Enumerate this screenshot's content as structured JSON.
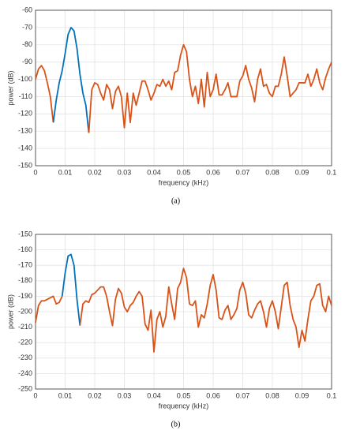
{
  "chart_data": [
    {
      "type": "line",
      "caption": "(a)",
      "xlabel": "frequency (kHz)",
      "ylabel": "power (dB)",
      "xlim": [
        0,
        0.1
      ],
      "xticks": [
        0,
        0.01,
        0.02,
        0.03,
        0.04,
        0.05,
        0.06,
        0.07,
        0.08,
        0.09,
        0.1
      ],
      "ylim": [
        -150,
        -60
      ],
      "yticks": [
        -60,
        -70,
        -80,
        -90,
        -100,
        -110,
        -120,
        -130,
        -140,
        -150
      ],
      "grid": true,
      "series": [
        {
          "color": "#d95319",
          "x": [
            0,
            0.001,
            0.002,
            0.003,
            0.004,
            0.005,
            0.006
          ],
          "values": [
            -100,
            -94,
            -92,
            -95,
            -102,
            -110,
            -125
          ]
        },
        {
          "color": "#0072bd",
          "x": [
            0.006,
            0.007,
            0.008,
            0.009,
            0.01,
            0.011,
            0.012,
            0.013,
            0.014,
            0.015,
            0.016,
            0.017,
            0.018
          ],
          "values": [
            -125,
            -112,
            -102,
            -95,
            -85,
            -74,
            -70,
            -72,
            -82,
            -97,
            -108,
            -115,
            -131
          ]
        },
        {
          "color": "#d95319",
          "x": [
            0.018,
            0.019,
            0.02,
            0.021,
            0.022,
            0.023,
            0.024,
            0.025,
            0.026,
            0.027,
            0.028,
            0.029,
            0.03,
            0.031,
            0.032,
            0.033,
            0.034,
            0.035,
            0.036,
            0.037,
            0.038,
            0.039,
            0.04,
            0.041,
            0.042,
            0.043,
            0.044,
            0.045,
            0.046,
            0.047,
            0.048,
            0.049,
            0.05,
            0.051,
            0.052,
            0.053,
            0.054,
            0.055,
            0.056,
            0.057,
            0.058,
            0.059,
            0.06,
            0.061,
            0.062,
            0.063,
            0.064,
            0.065,
            0.066,
            0.067,
            0.068,
            0.069,
            0.07,
            0.071,
            0.072,
            0.073,
            0.074,
            0.075,
            0.076,
            0.077,
            0.078,
            0.079,
            0.08,
            0.081,
            0.082,
            0.083,
            0.084,
            0.085,
            0.086,
            0.087,
            0.088,
            0.089,
            0.09,
            0.091,
            0.092,
            0.093,
            0.094,
            0.095,
            0.096,
            0.097,
            0.098,
            0.099,
            0.1
          ],
          "values": [
            -131,
            -106,
            -102,
            -103,
            -108,
            -112,
            -103,
            -106,
            -117,
            -107,
            -104,
            -110,
            -128,
            -108,
            -125,
            -108,
            -115,
            -108,
            -101,
            -101,
            -106,
            -112,
            -108,
            -103,
            -104,
            -100,
            -104,
            -101,
            -106,
            -96,
            -95,
            -86,
            -80,
            -84,
            -100,
            -110,
            -104,
            -114,
            -100,
            -116,
            -96,
            -110,
            -106,
            -97,
            -109,
            -109,
            -106,
            -102,
            -110,
            -110,
            -110,
            -101,
            -98,
            -92,
            -100,
            -105,
            -113,
            -100,
            -94,
            -104,
            -103,
            -108,
            -110,
            -104,
            -104,
            -97,
            -87,
            -98,
            -110,
            -108,
            -106,
            -102,
            -102,
            -102,
            -97,
            -104,
            -100,
            -94,
            -102,
            -106,
            -99,
            -94,
            -90
          ]
        }
      ]
    },
    {
      "type": "line",
      "caption": "(b)",
      "xlabel": "frequency (kHz)",
      "ylabel": "power (dB)",
      "xlim": [
        0,
        0.1
      ],
      "xticks": [
        0,
        0.01,
        0.02,
        0.03,
        0.04,
        0.05,
        0.06,
        0.07,
        0.08,
        0.09,
        0.1
      ],
      "ylim": [
        -250,
        -150
      ],
      "yticks": [
        -150,
        -160,
        -170,
        -180,
        -190,
        -200,
        -210,
        -220,
        -230,
        -240,
        -250
      ],
      "grid": true,
      "series": [
        {
          "color": "#d95319",
          "x": [
            0,
            0.001,
            0.002,
            0.003,
            0.004,
            0.005,
            0.006,
            0.007,
            0.008,
            0.009
          ],
          "values": [
            -207,
            -196,
            -193,
            -193,
            -192,
            -191,
            -190,
            -195,
            -194,
            -190
          ]
        },
        {
          "color": "#0072bd",
          "x": [
            0.009,
            0.01,
            0.011,
            0.012,
            0.013,
            0.014,
            0.015
          ],
          "values": [
            -190,
            -175,
            -164,
            -163,
            -170,
            -192,
            -209
          ]
        },
        {
          "color": "#d95319",
          "x": [
            0.015,
            0.016,
            0.017,
            0.018,
            0.019,
            0.02,
            0.021,
            0.022,
            0.023,
            0.024,
            0.025,
            0.026,
            0.027,
            0.028,
            0.029,
            0.03,
            0.031,
            0.032,
            0.033,
            0.034,
            0.035,
            0.036,
            0.037,
            0.038,
            0.039,
            0.04,
            0.041,
            0.042,
            0.043,
            0.044,
            0.045,
            0.046,
            0.047,
            0.048,
            0.049,
            0.05,
            0.051,
            0.052,
            0.053,
            0.054,
            0.055,
            0.056,
            0.057,
            0.058,
            0.059,
            0.06,
            0.061,
            0.062,
            0.063,
            0.064,
            0.065,
            0.066,
            0.067,
            0.068,
            0.069,
            0.07,
            0.071,
            0.072,
            0.073,
            0.074,
            0.075,
            0.076,
            0.077,
            0.078,
            0.079,
            0.08,
            0.081,
            0.082,
            0.083,
            0.084,
            0.085,
            0.086,
            0.087,
            0.088,
            0.089,
            0.09,
            0.091,
            0.092,
            0.093,
            0.094,
            0.095,
            0.096,
            0.097,
            0.098,
            0.099,
            0.1
          ],
          "values": [
            -209,
            -195,
            -193,
            -194,
            -189,
            -188,
            -186,
            -184,
            -184,
            -190,
            -200,
            -209,
            -192,
            -185,
            -188,
            -197,
            -200,
            -196,
            -194,
            -190,
            -187,
            -190,
            -208,
            -212,
            -199,
            -226,
            -205,
            -200,
            -210,
            -203,
            -184,
            -195,
            -205,
            -185,
            -181,
            -172,
            -178,
            -195,
            -196,
            -193,
            -210,
            -202,
            -204,
            -195,
            -183,
            -176,
            -186,
            -204,
            -205,
            -199,
            -196,
            -205,
            -202,
            -198,
            -186,
            -181,
            -188,
            -202,
            -204,
            -199,
            -195,
            -193,
            -200,
            -210,
            -198,
            -193,
            -200,
            -211,
            -197,
            -183,
            -181,
            -196,
            -205,
            -210,
            -223,
            -212,
            -219,
            -205,
            -193,
            -190,
            -183,
            -182,
            -196,
            -200,
            -190,
            -196
          ]
        }
      ]
    }
  ]
}
